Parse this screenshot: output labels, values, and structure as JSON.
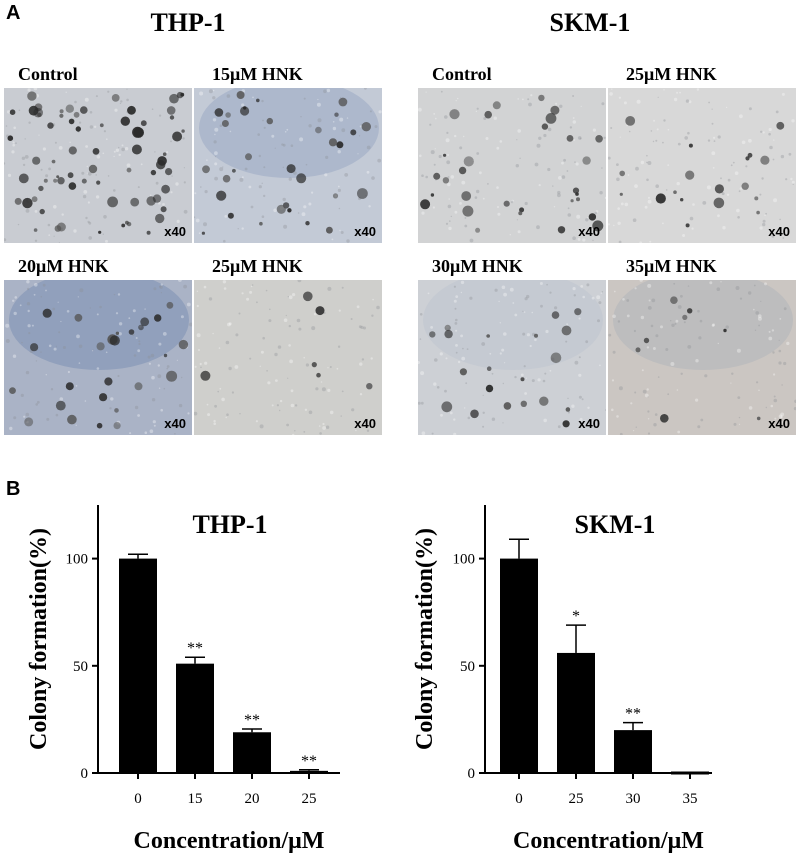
{
  "panel_a": {
    "letter": "A",
    "groups": [
      {
        "title": "THP-1",
        "panels": [
          {
            "label": "Control",
            "mag": "x40",
            "tint": "#c9ccd2",
            "dots": 70,
            "blue": 0
          },
          {
            "label": "15μM HNK",
            "mag": "x40",
            "tint": "#c3cad6",
            "dots": 32,
            "blue": 0.35
          },
          {
            "label": "20μM HNK",
            "mag": "x40",
            "tint": "#aab3c6",
            "dots": 26,
            "blue": 0.55
          },
          {
            "label": "25μM HNK",
            "mag": "x40",
            "tint": "#cfcfcc",
            "dots": 6,
            "blue": 0
          }
        ]
      },
      {
        "title": "SKM-1",
        "panels": [
          {
            "label": "Control",
            "mag": "x40",
            "tint": "#d2d3d4",
            "dots": 30,
            "blue": 0
          },
          {
            "label": "25μM HNK",
            "mag": "x40",
            "tint": "#d8d8d8",
            "dots": 18,
            "blue": 0
          },
          {
            "label": "30μM HNK",
            "mag": "x40",
            "tint": "#cdd0d5",
            "dots": 20,
            "blue": 0.1
          },
          {
            "label": "35μM HNK",
            "mag": "x40",
            "tint": "#cbc6c2",
            "dots": 8,
            "blue": 0.2
          }
        ]
      }
    ]
  },
  "panel_b": {
    "letter": "B"
  },
  "chart_data": [
    {
      "type": "bar",
      "title": "THP-1",
      "ylabel": "Colony formation(%)",
      "xlabel": "Concentration/μM",
      "categories": [
        "0",
        "15",
        "20",
        "25"
      ],
      "values": [
        100,
        51,
        19,
        1
      ],
      "errors": [
        2,
        3,
        1.5,
        0.5
      ],
      "significance": [
        "",
        "**",
        "**",
        "**"
      ],
      "yticks": [
        0,
        50,
        100
      ],
      "ylim": [
        0,
        125
      ],
      "bar_color": "#000000"
    },
    {
      "type": "bar",
      "title": "SKM-1",
      "ylabel": "Colony formation(%)",
      "xlabel": "Concentration/μM",
      "categories": [
        "0",
        "25",
        "30",
        "35"
      ],
      "values": [
        100,
        56,
        20,
        0
      ],
      "errors": [
        9,
        13,
        3.5,
        0
      ],
      "significance": [
        "",
        "*",
        "**",
        ""
      ],
      "yticks": [
        0,
        50,
        100
      ],
      "ylim": [
        0,
        125
      ],
      "bar_color": "#000000"
    }
  ]
}
